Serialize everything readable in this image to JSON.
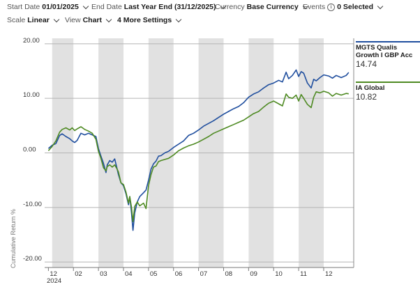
{
  "toolbar": {
    "start_date_label": "Start Date",
    "start_date_value": "01/01/2025",
    "end_date_label": "End Date",
    "end_date_value": "Last Year End (31/12/2025)",
    "currency_label": "Currency",
    "currency_value": "Base Currency",
    "events_label": "Events",
    "events_value": "0 Selected",
    "scale_label": "Scale",
    "scale_value": "Linear",
    "view_label": "View",
    "view_value": "Chart",
    "more_settings_label": "4 More Settings"
  },
  "legend": {
    "series1_name": "MGTS Qualis Growth I GBP Acc",
    "series1_value": "14.74",
    "series2_name": "IA Global",
    "series2_value": "10.82"
  },
  "colors": {
    "series1": "#1f4e9e",
    "series2": "#4e8a22",
    "band": "#e1e1e1"
  },
  "chart_data": {
    "type": "line",
    "ylabel": "Cumulative Return %",
    "ylim": [
      -21,
      21
    ],
    "yticks": [
      "20.00",
      "10.00",
      "0.00",
      "-10.00",
      "-20.00"
    ],
    "ytick_values": [
      20,
      10,
      0,
      -10,
      -20
    ],
    "xticks": [
      "12",
      "02",
      "03",
      "04",
      "05",
      "06",
      "07",
      "08",
      "09",
      "10",
      "11",
      "12"
    ],
    "xtick_year": "2024",
    "x_month_index": [
      0,
      1,
      2,
      3,
      4,
      5,
      6,
      7,
      8,
      9,
      10,
      11
    ],
    "x_range": [
      -0.15,
      12.2
    ],
    "shaded_bands": [
      [
        0.15,
        1.0
      ],
      [
        2.0,
        3.0
      ],
      [
        4.0,
        5.0
      ],
      [
        6.0,
        7.0
      ],
      [
        8.0,
        9.0
      ],
      [
        10.0,
        11.0
      ]
    ],
    "grid": "horizontal",
    "series": [
      {
        "name": "MGTS Qualis Growth I GBP Acc",
        "color": "#1f4e9e",
        "points": [
          [
            0.0,
            0.8
          ],
          [
            0.15,
            1.4
          ],
          [
            0.3,
            1.7
          ],
          [
            0.45,
            3.2
          ],
          [
            0.55,
            3.5
          ],
          [
            0.7,
            3.0
          ],
          [
            0.85,
            2.6
          ],
          [
            0.95,
            2.2
          ],
          [
            1.05,
            1.9
          ],
          [
            1.15,
            2.3
          ],
          [
            1.3,
            3.6
          ],
          [
            1.45,
            3.3
          ],
          [
            1.6,
            3.6
          ],
          [
            1.75,
            3.3
          ],
          [
            1.9,
            3.0
          ],
          [
            2.0,
            0.8
          ],
          [
            2.1,
            -0.6
          ],
          [
            2.2,
            -1.9
          ],
          [
            2.3,
            -3.6
          ],
          [
            2.35,
            -2.2
          ],
          [
            2.45,
            -1.4
          ],
          [
            2.55,
            -1.7
          ],
          [
            2.65,
            -1.1
          ],
          [
            2.75,
            -3.0
          ],
          [
            2.8,
            -4.0
          ],
          [
            2.9,
            -5.5
          ],
          [
            3.0,
            -6.0
          ],
          [
            3.1,
            -7.5
          ],
          [
            3.2,
            -9.5
          ],
          [
            3.25,
            -8.0
          ],
          [
            3.32,
            -11.0
          ],
          [
            3.38,
            -14.2
          ],
          [
            3.45,
            -11.0
          ],
          [
            3.55,
            -9.0
          ],
          [
            3.65,
            -8.0
          ],
          [
            3.8,
            -7.3
          ],
          [
            3.9,
            -6.8
          ],
          [
            4.0,
            -5.0
          ],
          [
            4.1,
            -3.0
          ],
          [
            4.2,
            -2.0
          ],
          [
            4.3,
            -1.5
          ],
          [
            4.4,
            -0.6
          ],
          [
            4.5,
            -0.5
          ],
          [
            4.65,
            0.0
          ],
          [
            4.8,
            0.3
          ],
          [
            5.0,
            1.0
          ],
          [
            5.2,
            1.6
          ],
          [
            5.4,
            2.2
          ],
          [
            5.6,
            3.2
          ],
          [
            5.8,
            3.6
          ],
          [
            6.0,
            4.2
          ],
          [
            6.2,
            4.9
          ],
          [
            6.4,
            5.4
          ],
          [
            6.6,
            5.9
          ],
          [
            6.8,
            6.5
          ],
          [
            7.0,
            7.1
          ],
          [
            7.2,
            7.6
          ],
          [
            7.4,
            8.1
          ],
          [
            7.6,
            8.5
          ],
          [
            7.8,
            9.2
          ],
          [
            8.0,
            10.2
          ],
          [
            8.2,
            10.8
          ],
          [
            8.4,
            11.2
          ],
          [
            8.6,
            11.9
          ],
          [
            8.8,
            12.5
          ],
          [
            9.0,
            12.8
          ],
          [
            9.2,
            13.3
          ],
          [
            9.35,
            13.0
          ],
          [
            9.5,
            14.8
          ],
          [
            9.6,
            13.6
          ],
          [
            9.75,
            14.2
          ],
          [
            9.9,
            15.2
          ],
          [
            10.0,
            14.0
          ],
          [
            10.1,
            14.9
          ],
          [
            10.2,
            14.6
          ],
          [
            10.35,
            12.8
          ],
          [
            10.5,
            11.9
          ],
          [
            10.6,
            13.5
          ],
          [
            10.7,
            13.2
          ],
          [
            10.85,
            13.8
          ],
          [
            11.0,
            14.3
          ],
          [
            11.2,
            14.1
          ],
          [
            11.35,
            13.7
          ],
          [
            11.5,
            14.2
          ],
          [
            11.7,
            13.8
          ],
          [
            11.9,
            14.2
          ],
          [
            12.0,
            14.74
          ]
        ]
      },
      {
        "name": "IA Global",
        "color": "#4e8a22",
        "points": [
          [
            0.0,
            0.4
          ],
          [
            0.15,
            1.2
          ],
          [
            0.3,
            2.2
          ],
          [
            0.45,
            3.8
          ],
          [
            0.55,
            4.3
          ],
          [
            0.7,
            4.6
          ],
          [
            0.85,
            4.2
          ],
          [
            0.95,
            4.6
          ],
          [
            1.05,
            4.1
          ],
          [
            1.15,
            4.4
          ],
          [
            1.3,
            4.8
          ],
          [
            1.45,
            4.3
          ],
          [
            1.6,
            4.0
          ],
          [
            1.75,
            3.6
          ],
          [
            1.9,
            2.5
          ],
          [
            2.0,
            0.3
          ],
          [
            2.1,
            -1.0
          ],
          [
            2.2,
            -2.7
          ],
          [
            2.3,
            -3.3
          ],
          [
            2.35,
            -2.5
          ],
          [
            2.45,
            -2.2
          ],
          [
            2.55,
            -2.6
          ],
          [
            2.65,
            -2.2
          ],
          [
            2.75,
            -3.0
          ],
          [
            2.8,
            -3.5
          ],
          [
            2.9,
            -5.5
          ],
          [
            3.0,
            -5.8
          ],
          [
            3.1,
            -7.2
          ],
          [
            3.2,
            -9.2
          ],
          [
            3.25,
            -8.0
          ],
          [
            3.32,
            -10.0
          ],
          [
            3.38,
            -12.6
          ],
          [
            3.45,
            -9.8
          ],
          [
            3.55,
            -9.0
          ],
          [
            3.65,
            -9.7
          ],
          [
            3.8,
            -9.2
          ],
          [
            3.9,
            -10.2
          ],
          [
            4.0,
            -6.0
          ],
          [
            4.1,
            -4.0
          ],
          [
            4.2,
            -2.6
          ],
          [
            4.3,
            -2.4
          ],
          [
            4.4,
            -1.6
          ],
          [
            4.5,
            -1.4
          ],
          [
            4.65,
            -1.2
          ],
          [
            4.8,
            -1.0
          ],
          [
            5.0,
            -0.4
          ],
          [
            5.2,
            0.4
          ],
          [
            5.4,
            0.9
          ],
          [
            5.6,
            1.3
          ],
          [
            5.8,
            1.6
          ],
          [
            6.0,
            2.0
          ],
          [
            6.2,
            2.5
          ],
          [
            6.4,
            3.0
          ],
          [
            6.6,
            3.6
          ],
          [
            6.8,
            4.0
          ],
          [
            7.0,
            4.4
          ],
          [
            7.2,
            4.8
          ],
          [
            7.4,
            5.2
          ],
          [
            7.6,
            5.6
          ],
          [
            7.8,
            6.0
          ],
          [
            8.0,
            6.6
          ],
          [
            8.2,
            7.2
          ],
          [
            8.4,
            7.6
          ],
          [
            8.6,
            8.4
          ],
          [
            8.8,
            9.1
          ],
          [
            9.0,
            9.5
          ],
          [
            9.2,
            9.0
          ],
          [
            9.35,
            8.6
          ],
          [
            9.5,
            10.8
          ],
          [
            9.6,
            10.2
          ],
          [
            9.75,
            10.0
          ],
          [
            9.9,
            10.6
          ],
          [
            10.0,
            9.5
          ],
          [
            10.1,
            10.7
          ],
          [
            10.2,
            10.0
          ],
          [
            10.35,
            8.9
          ],
          [
            10.5,
            8.3
          ],
          [
            10.6,
            10.2
          ],
          [
            10.7,
            11.2
          ],
          [
            10.85,
            11.0
          ],
          [
            11.0,
            11.3
          ],
          [
            11.2,
            11.0
          ],
          [
            11.35,
            10.4
          ],
          [
            11.5,
            10.9
          ],
          [
            11.7,
            10.6
          ],
          [
            11.9,
            10.9
          ],
          [
            12.0,
            10.82
          ]
        ]
      }
    ]
  }
}
